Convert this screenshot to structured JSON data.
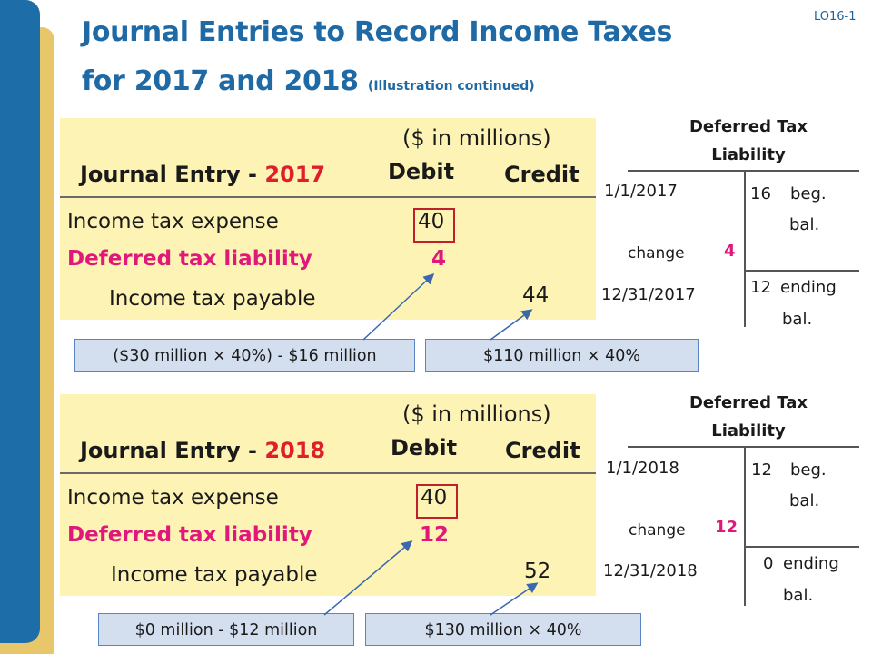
{
  "slide": {
    "lo_tag": "LO16-1",
    "title_line1": "Journal Entries to Record Income Taxes",
    "title_line2": "for 2017 and 2018",
    "title_sub": "(Illustration continued)"
  },
  "entries": [
    {
      "units": "($ in millions)",
      "label": "Journal Entry - ",
      "year": "2017",
      "debit_header": "Debit",
      "credit_header": "Credit",
      "lines": [
        {
          "account": "Income tax expense",
          "debit": "40",
          "credit": ""
        },
        {
          "account": "Deferred tax liability",
          "debit": "4",
          "credit": ""
        },
        {
          "account": "Income tax payable",
          "debit": "",
          "credit": "44"
        }
      ],
      "notes": [
        "($30 million × 40%) - $16 million",
        "$110 million × 40%"
      ]
    },
    {
      "units": "($ in millions)",
      "label": "Journal Entry - ",
      "year": "2018",
      "debit_header": "Debit",
      "credit_header": "Credit",
      "lines": [
        {
          "account": "Income tax expense",
          "debit": "40",
          "credit": ""
        },
        {
          "account": "Deferred tax liability",
          "debit": "12",
          "credit": ""
        },
        {
          "account": "Income tax payable",
          "debit": "",
          "credit": "52"
        }
      ],
      "notes": [
        "$0 million - $12 million",
        "$130 million × 40%"
      ]
    }
  ],
  "t_accounts": [
    {
      "title_line1": "Deferred Tax",
      "title_line2": "Liability",
      "begin_date": "1/1/2017",
      "begin_value": "16",
      "begin_label_1": "beg.",
      "begin_label_2": "bal.",
      "change_label": "change",
      "change_value": "4",
      "end_date": "12/31/2017",
      "end_value": "12",
      "end_label_1": "ending",
      "end_label_2": "bal."
    },
    {
      "title_line1": "Deferred Tax",
      "title_line2": "Liability",
      "begin_date": "1/1/2018",
      "begin_value": "12",
      "begin_label_1": "beg.",
      "begin_label_2": "bal.",
      "change_label": "change",
      "change_value": "12",
      "end_date": "12/31/2018",
      "end_value": "0",
      "end_label_1": "ending",
      "end_label_2": "bal."
    }
  ],
  "colors": {
    "title": "#1f6aa5",
    "panel": "#fdf3b4",
    "accent_red": "#e01f2b",
    "accent_pink": "#e0187a",
    "note_bg": "#d3deef",
    "sidebar_blue": "#1d6ea8",
    "sidebar_gold": "#e8c66a"
  }
}
